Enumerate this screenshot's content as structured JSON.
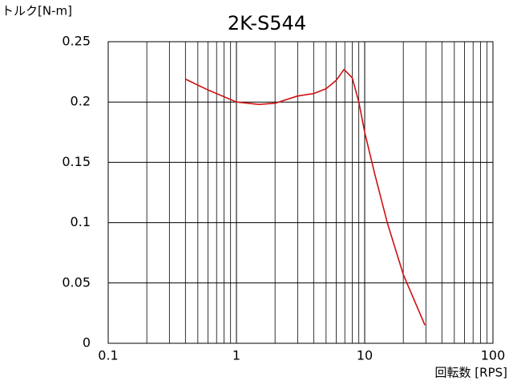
{
  "chart_data": {
    "type": "line",
    "title": "2K-S544",
    "y_label": "トルク[N-m]",
    "x_label": "回転数 [RPS]",
    "xscale": "log",
    "grid": true,
    "xlim": [
      0.1,
      100
    ],
    "xticks": [
      0.1,
      1,
      10,
      100
    ],
    "ylim": [
      0,
      0.25
    ],
    "yticks": [
      0,
      0.05,
      0.1,
      0.15,
      0.2,
      0.25
    ],
    "series": [
      {
        "name": "torque",
        "color": "#d01010",
        "x": [
          0.4,
          0.6,
          1.0,
          1.5,
          2.0,
          3.0,
          4.0,
          5.0,
          6.0,
          6.9,
          8.0,
          9.0,
          10,
          12,
          15,
          20,
          29.5
        ],
        "values": [
          0.219,
          0.21,
          0.2,
          0.198,
          0.199,
          0.205,
          0.207,
          0.211,
          0.218,
          0.227,
          0.22,
          0.2,
          0.175,
          0.14,
          0.1,
          0.057,
          0.015
        ]
      }
    ]
  }
}
